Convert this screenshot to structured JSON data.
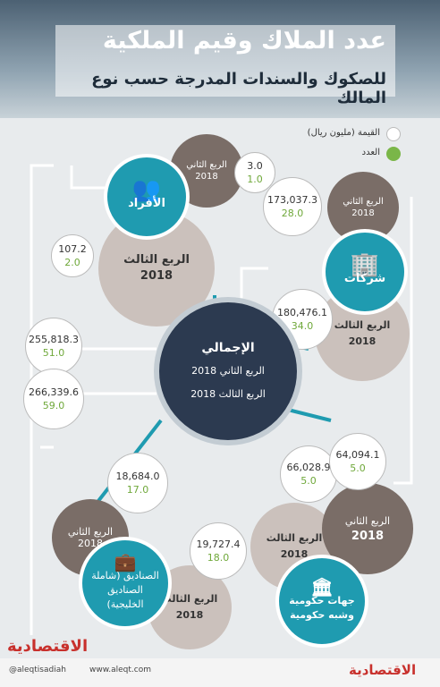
{
  "header": {
    "title": "عدد الملاك وقيم الملكية",
    "subtitle": "للصكوك والسندات المدرجة حسب نوع المالك"
  },
  "legend": {
    "value": "القيمة (مليون ريال)",
    "count": "العدد"
  },
  "quarters": {
    "q2": "الربع الثاني",
    "q3": "الربع الثالث",
    "year": "2018"
  },
  "groups": {
    "individuals": {
      "label": "الأفراد",
      "q2": {
        "value": "3.0",
        "count": "1.0"
      },
      "q3": {
        "value": "107.2",
        "count": "2.0"
      }
    },
    "companies": {
      "label": "شركات",
      "q2": {
        "value": "173,037.3",
        "count": "28.0"
      },
      "q3": {
        "value": "180,476.1",
        "count": "34.0"
      }
    },
    "total": {
      "label": "الإجمالي",
      "q2_label": "الربع الثاني 2018",
      "q3_label": "الربع الثالث 2018",
      "q2": {
        "value": "255,818.3",
        "count": "51.0"
      },
      "q3": {
        "value": "266,339.6",
        "count": "59.0"
      }
    },
    "government": {
      "label": "جهات حكومية وشبه حكومية",
      "q2": {
        "value": "64,094.1",
        "count": "5.0"
      },
      "q3": {
        "value": "66,028.9",
        "count": "5.0"
      }
    },
    "funds": {
      "label": "الصناديق (شاملة الصناديق الخليجية)",
      "q2": {
        "value": "18,684.0",
        "count": "17.0"
      },
      "q3": {
        "value": "19,727.4",
        "count": "18.0"
      }
    }
  },
  "footer": {
    "brand": "الاقتصادية",
    "twitter": "@aleqtisadiah",
    "website": "www.aleqt.com"
  }
}
